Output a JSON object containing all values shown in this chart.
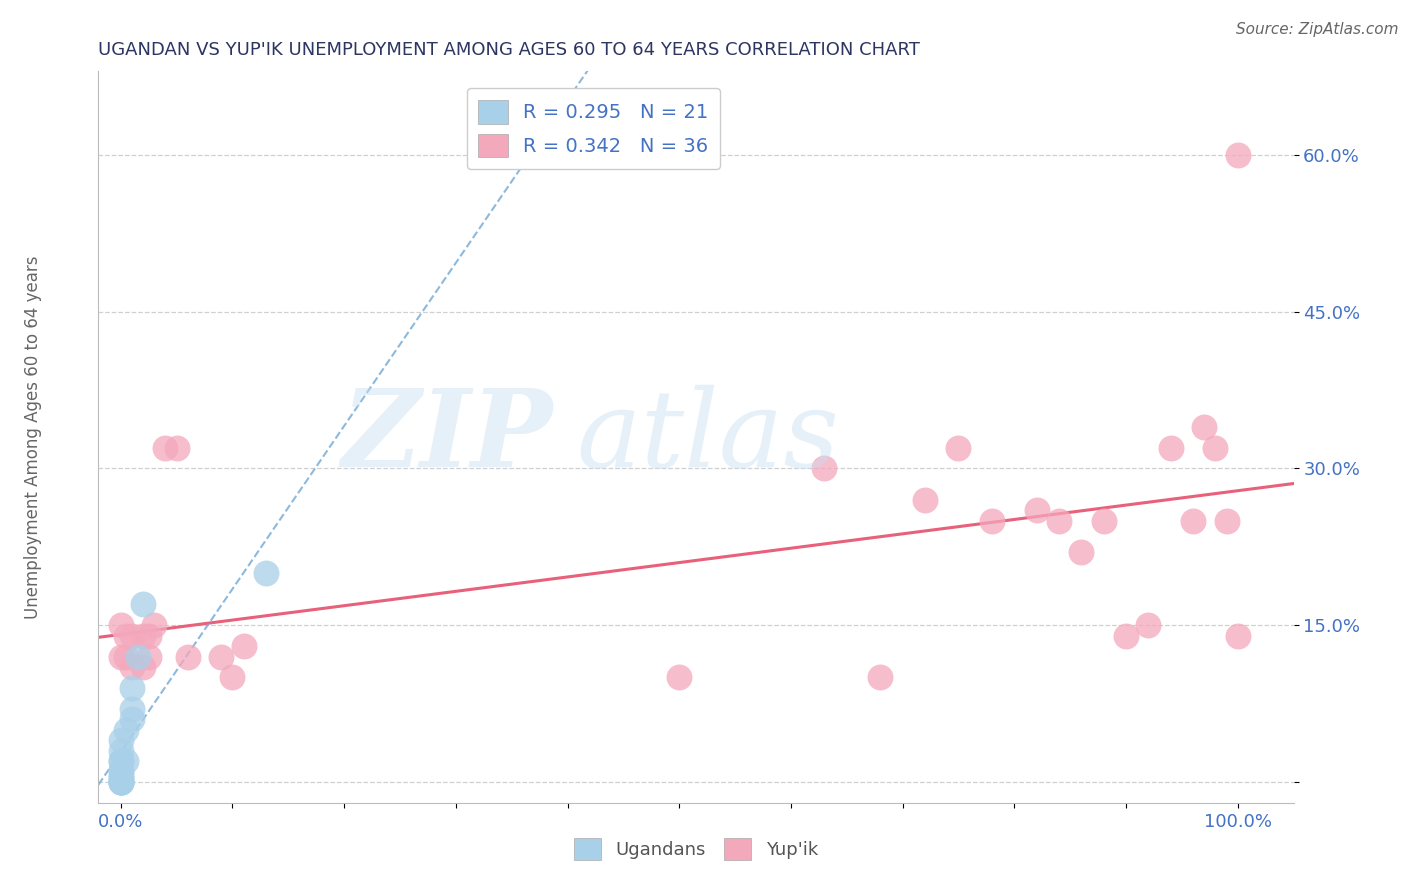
{
  "title": "UGANDAN VS YUP'IK UNEMPLOYMENT AMONG AGES 60 TO 64 YEARS CORRELATION CHART",
  "source": "Source: ZipAtlas.com",
  "ylabel": "Unemployment Among Ages 60 to 64 years",
  "xlim": [
    -0.02,
    1.05
  ],
  "ylim": [
    -0.02,
    0.68
  ],
  "xticks": [
    0.0,
    0.1,
    0.2,
    0.3,
    0.4,
    0.5,
    0.6,
    0.7,
    0.8,
    0.9,
    1.0
  ],
  "xticklabels": [
    "0.0%",
    "",
    "",
    "",
    "",
    "",
    "",
    "",
    "",
    "",
    "100.0%"
  ],
  "ytick_positions": [
    0.0,
    0.15,
    0.3,
    0.45,
    0.6
  ],
  "ytick_labels": [
    "",
    "15.0%",
    "30.0%",
    "45.0%",
    "60.0%"
  ],
  "ugandan_r": 0.295,
  "ugandan_n": 21,
  "yupik_r": 0.342,
  "yupik_n": 36,
  "ugandan_color": "#a8d0e8",
  "yupik_color": "#f4a8bc",
  "ugandan_line_color": "#6fa8d4",
  "yupik_line_color": "#e8607a",
  "legend_text_color": "#4472c4",
  "background_color": "#ffffff",
  "grid_color": "#d0d0d0",
  "ugandan_x": [
    0.0,
    0.0,
    0.0,
    0.0,
    0.0,
    0.0,
    0.0,
    0.0,
    0.0,
    0.0,
    0.0,
    0.0,
    0.0,
    0.005,
    0.005,
    0.01,
    0.01,
    0.01,
    0.015,
    0.02,
    0.13
  ],
  "ugandan_y": [
    0.0,
    0.0,
    0.0,
    0.0,
    0.0,
    0.005,
    0.005,
    0.01,
    0.01,
    0.02,
    0.02,
    0.03,
    0.04,
    0.02,
    0.05,
    0.06,
    0.07,
    0.09,
    0.12,
    0.17,
    0.2
  ],
  "yupik_x": [
    0.0,
    0.0,
    0.005,
    0.005,
    0.01,
    0.01,
    0.02,
    0.02,
    0.025,
    0.025,
    0.03,
    0.04,
    0.05,
    0.06,
    0.09,
    0.1,
    0.11,
    0.5,
    0.63,
    0.68,
    0.72,
    0.75,
    0.78,
    0.82,
    0.84,
    0.86,
    0.88,
    0.9,
    0.92,
    0.94,
    0.96,
    0.97,
    0.98,
    0.99,
    1.0,
    1.0
  ],
  "yupik_y": [
    0.12,
    0.15,
    0.12,
    0.14,
    0.11,
    0.14,
    0.11,
    0.14,
    0.12,
    0.14,
    0.15,
    0.32,
    0.32,
    0.12,
    0.12,
    0.1,
    0.13,
    0.1,
    0.3,
    0.1,
    0.27,
    0.32,
    0.25,
    0.26,
    0.25,
    0.22,
    0.25,
    0.14,
    0.15,
    0.32,
    0.25,
    0.34,
    0.32,
    0.25,
    0.14,
    0.6
  ]
}
